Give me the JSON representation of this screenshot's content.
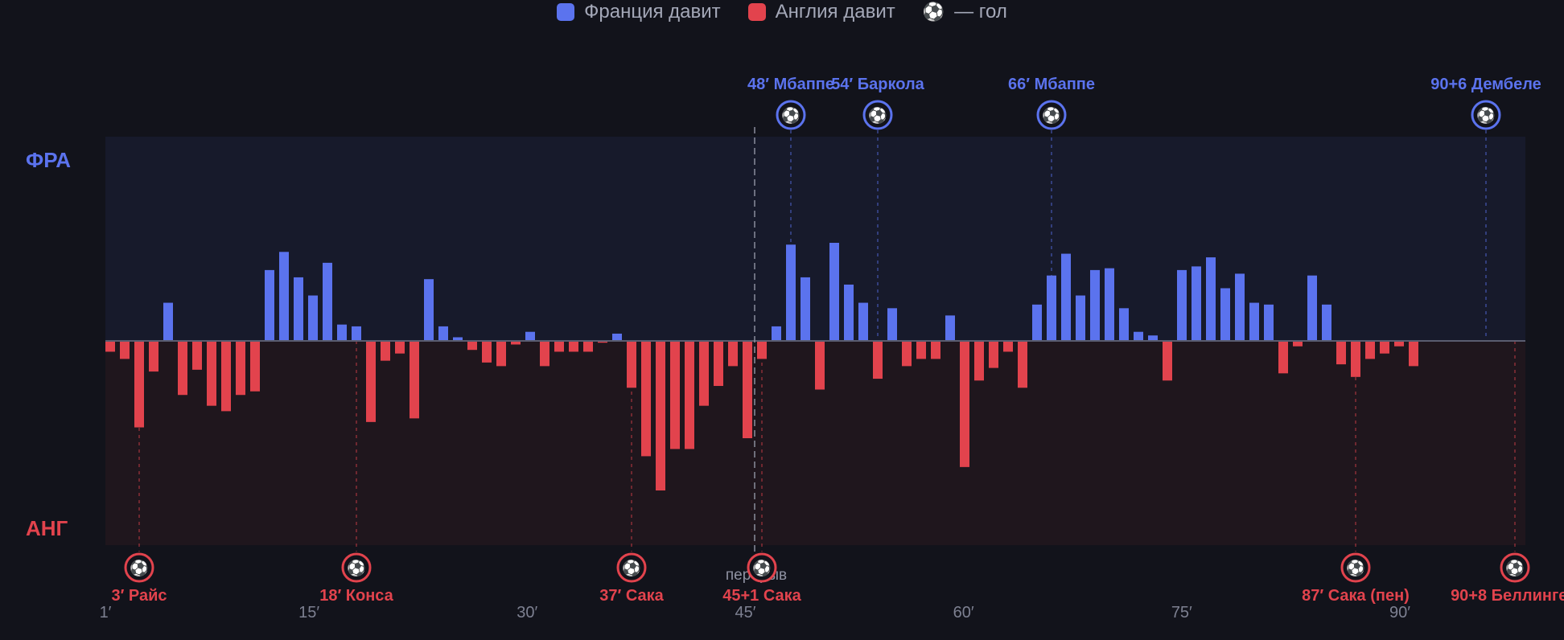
{
  "legend": {
    "france": "Франция давит",
    "england": "Англия давит",
    "goal_icon": "⚽",
    "goal": "— гол"
  },
  "colors": {
    "france": "#5b73ee",
    "england": "#e2434d",
    "background": "#12131b",
    "france_zone": "#171a2b",
    "england_zone": "#1f161d"
  },
  "labels": {
    "top": "ФРА",
    "bottom": "АНГ",
    "halftime": "перерыв"
  },
  "chart_data": {
    "type": "bar",
    "title": "",
    "xlabel": "",
    "ylabel": "",
    "ylim": [
      -1,
      1
    ],
    "x_ticks": [
      "1′",
      "15′",
      "30′",
      "45′",
      "60′",
      "75′",
      "90′"
    ],
    "x_tick_minutes": [
      1,
      15,
      30,
      45,
      60,
      75,
      90
    ],
    "halftime_after_bar": 45,
    "series": [
      {
        "name": "Франция давит / Англия давит",
        "values": [
          -0.06,
          -0.1,
          -0.48,
          -0.17,
          0.21,
          -0.3,
          -0.16,
          -0.36,
          -0.39,
          -0.3,
          -0.28,
          0.39,
          0.49,
          0.35,
          0.25,
          0.43,
          0.09,
          0.08,
          -0.45,
          -0.11,
          -0.07,
          -0.43,
          0.34,
          0.08,
          0.02,
          -0.05,
          -0.12,
          -0.14,
          -0.02,
          0.05,
          -0.14,
          -0.06,
          -0.06,
          -0.06,
          -0.01,
          0.04,
          -0.26,
          -0.64,
          -0.83,
          -0.6,
          -0.6,
          -0.36,
          -0.25,
          -0.14,
          -0.54,
          -0.1,
          0.08,
          0.53,
          0.35,
          -0.27,
          0.54,
          0.31,
          0.21,
          -0.21,
          0.18,
          -0.14,
          -0.1,
          -0.1,
          0.14,
          -0.7,
          -0.22,
          -0.15,
          -0.06,
          -0.26,
          0.2,
          0.36,
          0.48,
          0.25,
          0.39,
          0.4,
          0.18,
          0.05,
          0.03,
          -0.22,
          0.39,
          0.41,
          0.46,
          0.29,
          0.37,
          0.21,
          0.2,
          -0.18,
          -0.03,
          0.36,
          0.2,
          -0.13,
          -0.2,
          -0.1,
          -0.07,
          -0.03,
          -0.14,
          0,
          0,
          0,
          0,
          0,
          0,
          0,
          0
        ]
      }
    ],
    "goals": [
      {
        "team": "france",
        "minute": 48,
        "label": "48′ Мбаппе",
        "bar": 47
      },
      {
        "team": "france",
        "minute": 54,
        "label": "54′ Баркола",
        "bar": 53
      },
      {
        "team": "france",
        "minute": 66,
        "label": "66′ Мбаппе",
        "bar": 65
      },
      {
        "team": "france",
        "minute": 96,
        "label": "90+6 Дембеле",
        "bar": 95
      },
      {
        "team": "england",
        "minute": 3,
        "label": "3′ Райс",
        "bar": 2
      },
      {
        "team": "england",
        "minute": 18,
        "label": "18′ Конса",
        "bar": 17
      },
      {
        "team": "england",
        "minute": 37,
        "label": "37′ Сака",
        "bar": 36
      },
      {
        "team": "england",
        "minute": 46,
        "label": "45+1 Сака",
        "bar": 45
      },
      {
        "team": "england",
        "minute": 87,
        "label": "87′ Сака (пен)",
        "bar": 86
      },
      {
        "team": "england",
        "minute": 98,
        "label": "90+8 Беллингем",
        "bar": 97
      }
    ]
  }
}
